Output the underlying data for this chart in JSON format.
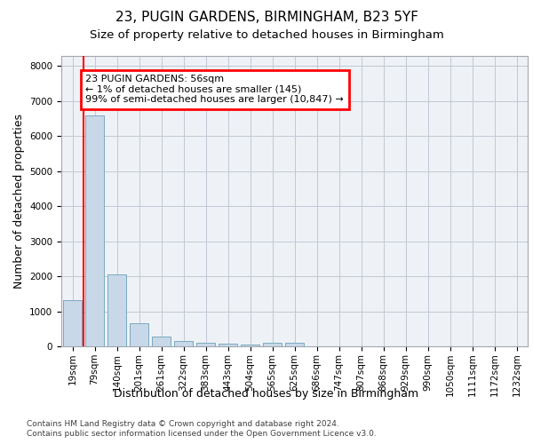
{
  "title1": "23, PUGIN GARDENS, BIRMINGHAM, B23 5YF",
  "title2": "Size of property relative to detached houses in Birmingham",
  "xlabel": "Distribution of detached houses by size in Birmingham",
  "ylabel": "Number of detached properties",
  "categories": [
    "19sqm",
    "79sqm",
    "140sqm",
    "201sqm",
    "261sqm",
    "322sqm",
    "383sqm",
    "443sqm",
    "504sqm",
    "565sqm",
    "625sqm",
    "686sqm",
    "747sqm",
    "807sqm",
    "868sqm",
    "929sqm",
    "990sqm",
    "1050sqm",
    "1111sqm",
    "1172sqm",
    "1232sqm"
  ],
  "values": [
    1310,
    6600,
    2060,
    650,
    290,
    155,
    100,
    80,
    55,
    100,
    110,
    0,
    0,
    0,
    0,
    0,
    0,
    0,
    0,
    0,
    0
  ],
  "bar_color": "#c8d8e8",
  "bar_edge_color": "#7aaabf",
  "annotation_text": "23 PUGIN GARDENS: 56sqm\n← 1% of detached houses are smaller (145)\n99% of semi-detached houses are larger (10,847) →",
  "annotation_box_color": "white",
  "annotation_box_edge_color": "red",
  "property_line_color": "red",
  "ylim": [
    0,
    8300
  ],
  "yticks": [
    0,
    1000,
    2000,
    3000,
    4000,
    5000,
    6000,
    7000,
    8000
  ],
  "footer1": "Contains HM Land Registry data © Crown copyright and database right 2024.",
  "footer2": "Contains public sector information licensed under the Open Government Licence v3.0.",
  "background_color": "#eef2f6",
  "grid_color": "#c0c8d4",
  "title1_fontsize": 11,
  "title2_fontsize": 9.5,
  "tick_fontsize": 7.5,
  "ylabel_fontsize": 9,
  "xlabel_fontsize": 9,
  "annotation_fontsize": 8,
  "footer_fontsize": 6.5
}
